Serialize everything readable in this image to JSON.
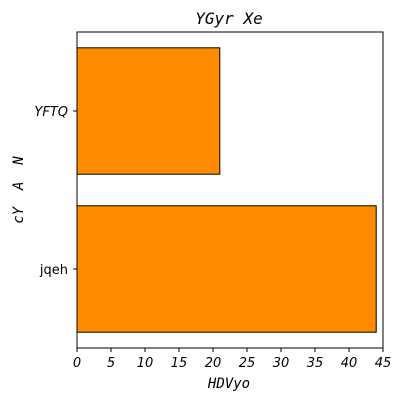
{
  "chart_data": {
    "type": "bar",
    "orientation": "horizontal",
    "title": "YGyr Xe",
    "xlabel": "HDVyo",
    "ylabel": "cY  A  N",
    "categories": [
      "YFTQ",
      "jqeh"
    ],
    "category_styles": [
      "italic",
      "normal"
    ],
    "values": [
      21,
      44
    ],
    "xlim": [
      0,
      45
    ],
    "xticks": [
      0,
      5,
      10,
      15,
      20,
      25,
      30,
      35,
      40,
      45
    ],
    "grid": false,
    "bar_color": "#ff8c00",
    "edge_color": "#000000"
  }
}
